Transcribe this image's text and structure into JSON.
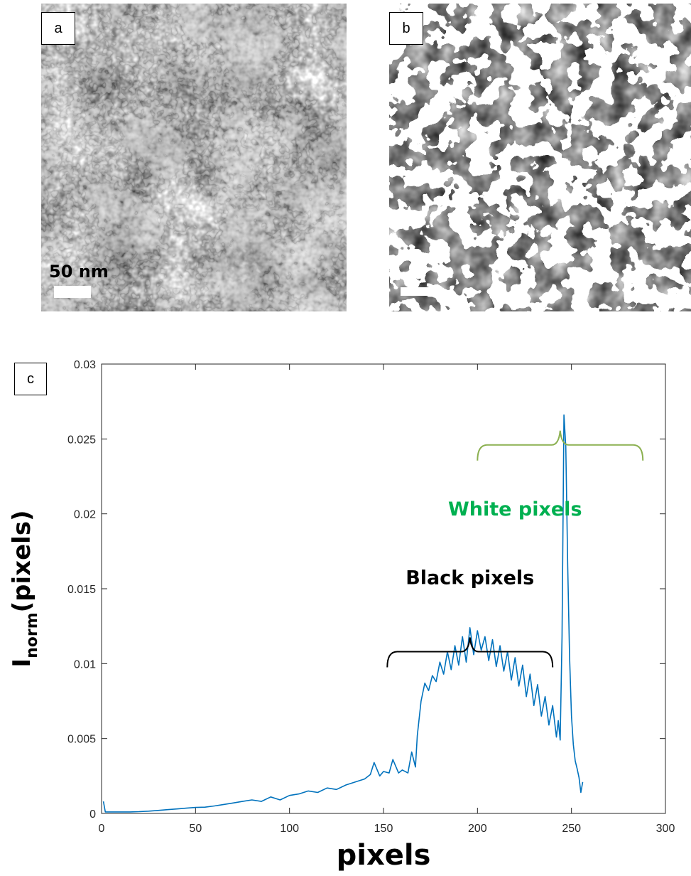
{
  "panels": {
    "a": {
      "label": "a",
      "scale_text": "50 nm"
    },
    "b": {
      "label": "b"
    },
    "c": {
      "label": "c"
    }
  },
  "colors": {
    "series": "#0072BD",
    "white_annotation": "#00B050",
    "white_brace": "#8BB050",
    "black_annotation": "#000000"
  },
  "chart_data": {
    "type": "line",
    "xlabel": "pixels",
    "ylabel_main": "I",
    "ylabel_sub": "norm",
    "ylabel_rest": "(pixels)",
    "xlim": [
      0,
      300
    ],
    "ylim": [
      0,
      0.03
    ],
    "xticks": [
      0,
      50,
      100,
      150,
      200,
      250,
      300
    ],
    "yticks": [
      0,
      0.005,
      0.01,
      0.015,
      0.02,
      0.025,
      0.03
    ],
    "xtick_labels": [
      "0",
      "50",
      "100",
      "150",
      "200",
      "250",
      "300"
    ],
    "ytick_labels": [
      "0",
      "0.005",
      "0.01",
      "0.015",
      "0.02",
      "0.025",
      "0.03"
    ],
    "annotations": [
      {
        "text": "Black pixels",
        "brace_from": 152,
        "brace_to": 240,
        "brace_y": 0.0108,
        "text_y": 0.0153,
        "color": "#000000"
      },
      {
        "text": "White pixels",
        "brace_from": 200,
        "brace_to": 288,
        "brace_y": 0.0246,
        "text_y": 0.0199,
        "color": "#00B050"
      }
    ],
    "series": [
      {
        "x": [
          1,
          2,
          5,
          10,
          15,
          20,
          25,
          30,
          35,
          40,
          45,
          50,
          55,
          60,
          65,
          70,
          75,
          80,
          85,
          90,
          95,
          100,
          105,
          110,
          115,
          120,
          125,
          130,
          135,
          140,
          143,
          145,
          148,
          150,
          153,
          155,
          158,
          160,
          163,
          165,
          167,
          168,
          170,
          172,
          174,
          176,
          178,
          180,
          182,
          184,
          186,
          188,
          190,
          192,
          194,
          196,
          198,
          200,
          202,
          204,
          206,
          208,
          210,
          212,
          214,
          216,
          218,
          220,
          222,
          224,
          226,
          228,
          230,
          232,
          234,
          236,
          238,
          240,
          242,
          243,
          244,
          245,
          246,
          247,
          248,
          249,
          250,
          251,
          252,
          253,
          254,
          255,
          256
        ],
        "y": [
          0.0008,
          0.0001,
          0.0001,
          0.0001,
          0.0001,
          0.00012,
          0.00015,
          0.0002,
          0.00025,
          0.0003,
          0.00035,
          0.0004,
          0.00042,
          0.0005,
          0.0006,
          0.0007,
          0.0008,
          0.0009,
          0.0008,
          0.0011,
          0.0009,
          0.0012,
          0.0013,
          0.0015,
          0.0014,
          0.0017,
          0.0016,
          0.0019,
          0.0021,
          0.0023,
          0.0026,
          0.0034,
          0.0025,
          0.0028,
          0.0027,
          0.0036,
          0.0027,
          0.0029,
          0.0027,
          0.0041,
          0.0031,
          0.0052,
          0.0075,
          0.0087,
          0.0082,
          0.0092,
          0.0088,
          0.0101,
          0.0093,
          0.0108,
          0.0096,
          0.0112,
          0.0099,
          0.0118,
          0.0101,
          0.0124,
          0.0106,
          0.0122,
          0.0109,
          0.0118,
          0.0102,
          0.0116,
          0.0098,
          0.0112,
          0.0095,
          0.0108,
          0.0089,
          0.0104,
          0.0085,
          0.0099,
          0.0078,
          0.0093,
          0.0072,
          0.0086,
          0.0065,
          0.0078,
          0.0059,
          0.0072,
          0.0051,
          0.0062,
          0.0049,
          0.0118,
          0.0266,
          0.0245,
          0.0165,
          0.0105,
          0.0065,
          0.0046,
          0.0035,
          0.003,
          0.0024,
          0.0014,
          0.0021
        ]
      }
    ]
  }
}
